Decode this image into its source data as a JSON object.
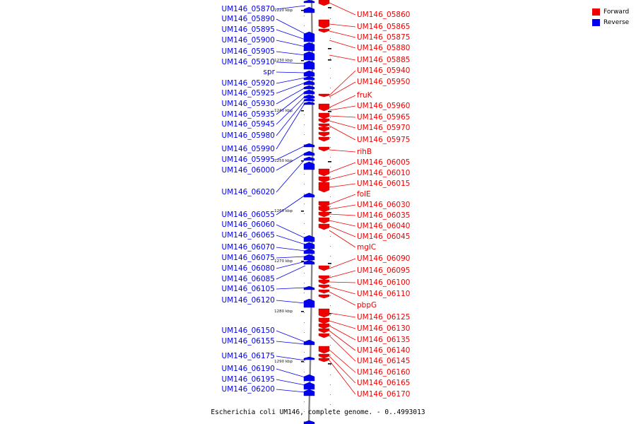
{
  "caption": "Escherichia coli UM146, complete genome. - 0..4993013",
  "legend": {
    "forward_label": "Forward",
    "reverse_label": "Reverse",
    "forward_color": "#ee0000",
    "reverse_color": "#0000ee"
  },
  "ticks": [
    "1220 kbp",
    "1230 kbp",
    "1240 kbp",
    "1250 kbp",
    "1260 kbp",
    "1270 kbp",
    "1280 kbp",
    "1290 kbp"
  ],
  "reverse_genes": [
    "UM146_05870",
    "UM146_05890",
    "UM146_05895",
    "UM146_05900",
    "UM146_05905",
    "UM146_05910",
    "spr",
    "UM146_05920",
    "UM146_05925",
    "UM146_05930",
    "UM146_05935",
    "UM146_05945",
    "UM146_05980",
    "UM146_05990",
    "UM146_05995",
    "UM146_06000",
    "UM146_06020",
    "UM146_06055",
    "UM146_06060",
    "UM146_06065",
    "UM146_06070",
    "UM146_06075",
    "UM146_06080",
    "UM146_06085",
    "UM146_06105",
    "UM146_06120",
    "UM146_06150",
    "UM146_06155",
    "UM146_06175",
    "UM146_06190",
    "UM146_06195",
    "UM146_06200"
  ],
  "forward_genes": [
    "UM146_05860",
    "UM146_05865",
    "UM146_05875",
    "UM146_05880",
    "UM146_05885",
    "UM146_05940",
    "UM146_05950",
    "fruK",
    "UM146_05960",
    "UM146_05965",
    "UM146_05970",
    "UM146_05975",
    "rihB",
    "UM146_06005",
    "UM146_06010",
    "UM146_06015",
    "folE",
    "UM146_06030",
    "UM146_06035",
    "UM146_06040",
    "UM146_06045",
    "mglC",
    "UM146_06090",
    "UM146_06095",
    "UM146_06100",
    "UM146_06110",
    "pbpG",
    "UM146_06125",
    "UM146_06130",
    "UM146_06135",
    "UM146_06140",
    "UM146_06145",
    "UM146_06160",
    "UM146_06165",
    "UM146_06170"
  ]
}
